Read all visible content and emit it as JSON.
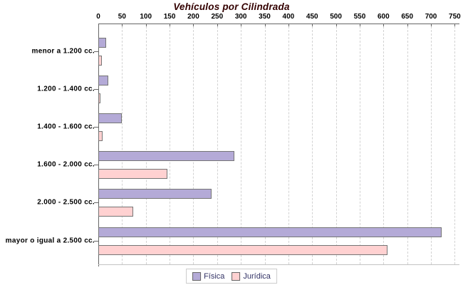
{
  "chart_data": {
    "type": "bar",
    "orientation": "horizontal",
    "title": "Vehículos por Cilindrada",
    "title_color": "#330000",
    "categories": [
      "menor a 1.200 cc.",
      "1.200 - 1.400 cc.",
      "1.400 - 1.600 cc.",
      "1.600 - 2.000 cc.",
      "2.000 - 2.500 cc.",
      "mayor o igual a 2.500 cc."
    ],
    "series": [
      {
        "name": "Física",
        "color": "#b4aad7",
        "values": [
          13,
          18,
          47,
          283,
          236,
          720
        ]
      },
      {
        "name": "Jurídica",
        "color": "#ffd1d1",
        "values": [
          4,
          2,
          6,
          142,
          71,
          606
        ]
      }
    ],
    "xlabel": "",
    "ylabel": "",
    "xlim": [
      0,
      750
    ],
    "x_ticks": [
      0,
      50,
      100,
      150,
      200,
      250,
      300,
      350,
      400,
      450,
      500,
      550,
      600,
      650,
      700,
      750
    ],
    "grid": "vertical-dashed",
    "legend_position": "bottom",
    "legend_text_color": "#333366",
    "bar_border_color": "#757575",
    "axis_color": "#666666",
    "gridline_color": "#d2d2d2"
  }
}
